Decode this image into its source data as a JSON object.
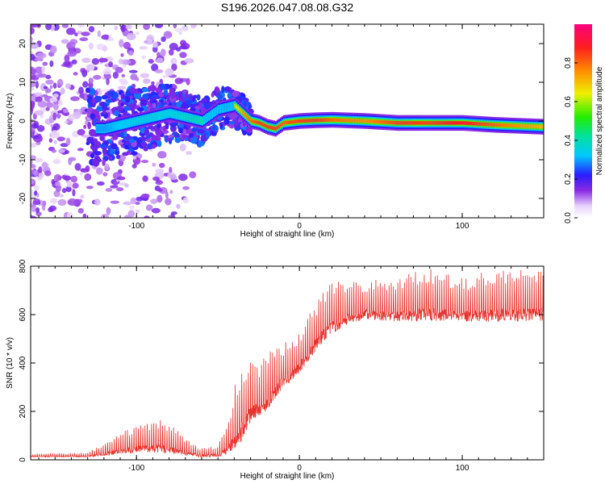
{
  "title": "S196.2026.047.08.08.G32",
  "colors": {
    "snr_line": "#e8302a",
    "frame": "#000000",
    "spec_low": "#7a1cff"
  },
  "chart_data": [
    {
      "type": "heatmap",
      "name": "spectrogram",
      "xlabel": "Height of straight line (km)",
      "ylabel": "Frequency (Hz)",
      "xlim": [
        -165,
        150
      ],
      "ylim": [
        -25,
        25
      ],
      "xticks": [
        -100,
        0,
        100
      ],
      "yticks": [
        -20,
        -10,
        0,
        10,
        20
      ],
      "colorbar": {
        "label": "Normalized spectral amplitude",
        "range": [
          0,
          1
        ],
        "ticks": [
          0.0,
          0.2,
          0.4,
          0.6,
          0.8
        ],
        "tick_labels": [
          "0.0",
          "0.2",
          "0.4",
          "0.6",
          "0.8"
        ],
        "colormap": "rainbow"
      },
      "ridge": {
        "x": [
          -120,
          -100,
          -80,
          -60,
          -50,
          -40,
          -35,
          -30,
          -25,
          -20,
          -15,
          -10,
          0,
          10,
          20,
          40,
          60,
          80,
          100,
          120,
          150
        ],
        "freq_hz": [
          -2,
          0,
          2,
          0,
          3,
          4,
          2,
          0,
          -0.5,
          -1.5,
          -2,
          -0.5,
          0,
          0.2,
          0.3,
          0,
          -0.5,
          -0.5,
          -0.5,
          -1,
          -1.5
        ],
        "amplitude": [
          0.3,
          0.35,
          0.35,
          0.4,
          0.5,
          0.6,
          0.75,
          0.8,
          0.85,
          0.85,
          0.85,
          0.8,
          0.85,
          0.85,
          0.8,
          0.75,
          0.85,
          0.85,
          0.9,
          0.8,
          0.7
        ]
      }
    },
    {
      "type": "line",
      "name": "snr",
      "xlabel": "Height of straight line (km)",
      "ylabel": "SNR (10 * v/v)",
      "xlim": [
        -165,
        150
      ],
      "ylim": [
        0,
        800
      ],
      "xticks": [
        -100,
        0,
        100
      ],
      "yticks": [
        0,
        200,
        400,
        600,
        800
      ],
      "envelope": {
        "x": [
          -165,
          -130,
          -120,
          -110,
          -100,
          -90,
          -80,
          -70,
          -60,
          -50,
          -45,
          -40,
          -35,
          -30,
          -25,
          -20,
          -15,
          -10,
          -5,
          0,
          5,
          10,
          15,
          20,
          30,
          40,
          60,
          80,
          100,
          120,
          150
        ],
        "base": [
          12,
          12,
          15,
          25,
          28,
          30,
          25,
          18,
          10,
          12,
          20,
          40,
          80,
          150,
          180,
          200,
          250,
          300,
          320,
          360,
          400,
          450,
          490,
          520,
          560,
          580,
          570,
          575,
          570,
          570,
          575
        ],
        "peak": [
          25,
          30,
          70,
          120,
          140,
          170,
          160,
          90,
          50,
          60,
          140,
          300,
          400,
          430,
          400,
          440,
          480,
          480,
          500,
          520,
          600,
          650,
          700,
          740,
          740,
          740,
          760,
          790,
          750,
          790,
          780
        ]
      }
    }
  ]
}
